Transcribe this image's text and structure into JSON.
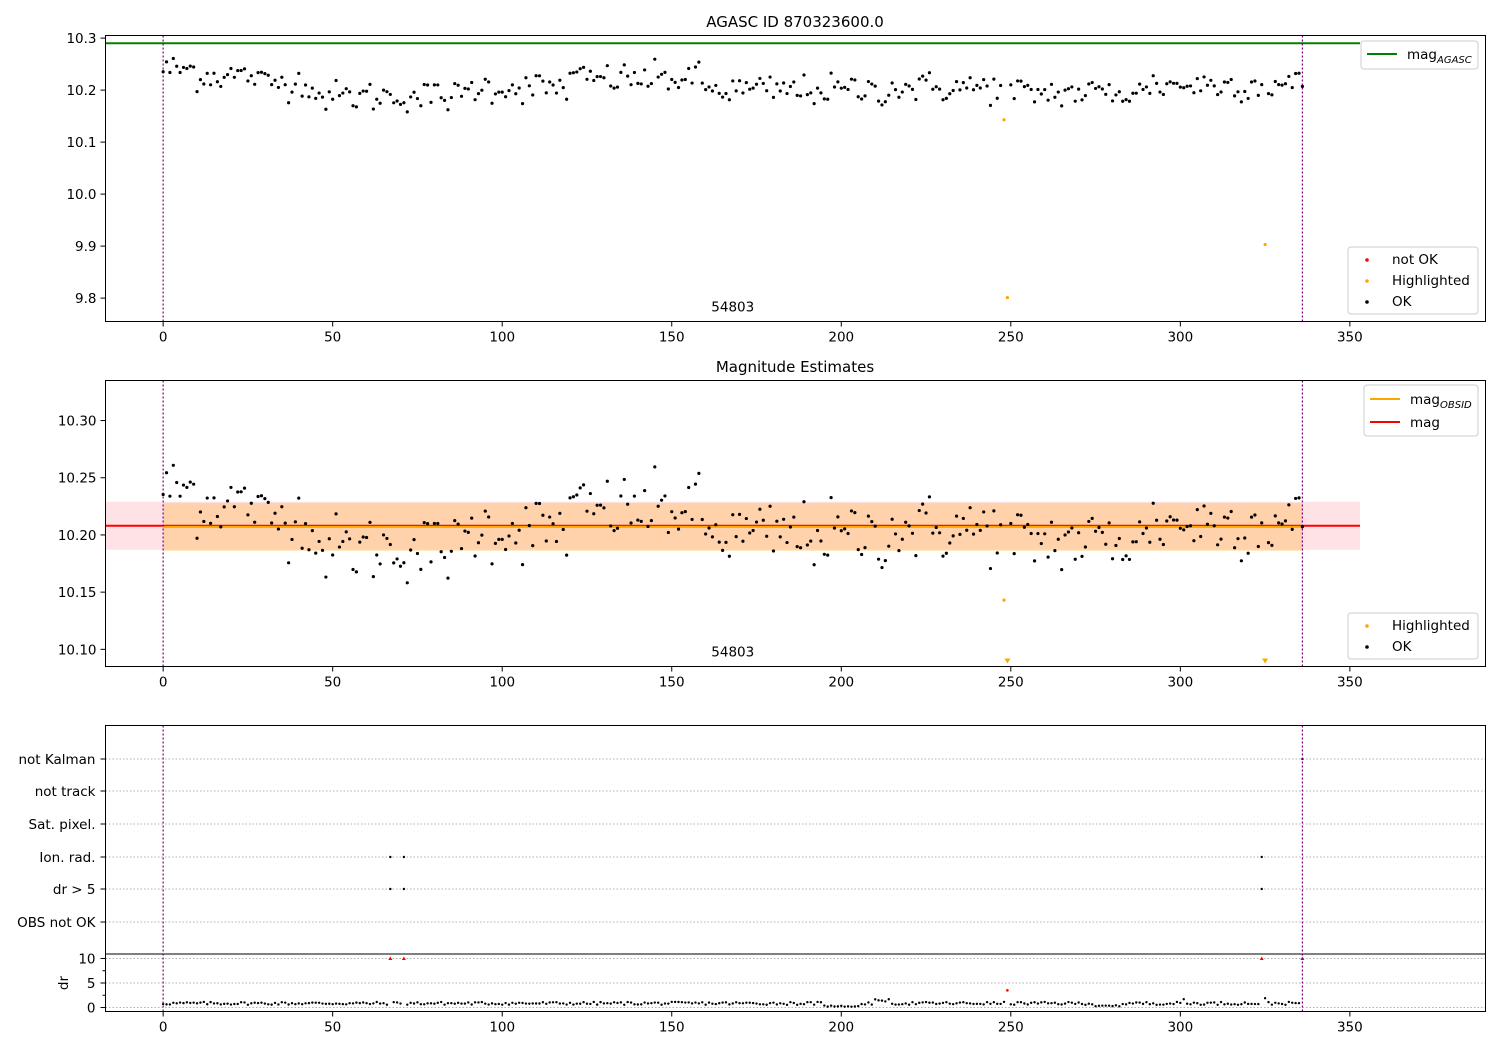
{
  "chart_data": [
    {
      "type": "scatter",
      "title": "AGASC ID 870323600.0",
      "xlim": [
        -17,
        390
      ],
      "ylim": [
        9.755,
        10.305
      ],
      "xticks": [
        0,
        50,
        100,
        150,
        200,
        250,
        300,
        350
      ],
      "yticks": [
        9.8,
        9.9,
        10.0,
        10.1,
        10.2,
        10.3
      ],
      "ytick_labels": [
        "9.8",
        "9.9",
        "10.0",
        "10.1",
        "10.2",
        "10.3"
      ],
      "vlines": [
        0,
        336
      ],
      "obsid_label": {
        "text": "54803",
        "x": 168
      },
      "mag_agasc": {
        "value": 10.29,
        "color": "#008000",
        "x_range": [
          -17,
          353
        ]
      },
      "ok_color": "#000000",
      "highlight_color": "#ffa500",
      "notok_color": "#ff0000",
      "highlighted": [
        {
          "x": 248,
          "y": 10.143
        },
        {
          "x": 249,
          "y": 9.801
        },
        {
          "x": 325,
          "y": 9.903
        }
      ],
      "legend_top": [
        {
          "label": "mag",
          "sub": "AGASC",
          "color": "#008000"
        }
      ],
      "legend_bottom": [
        {
          "label": "not OK",
          "color": "#ff0000"
        },
        {
          "label": "Highlighted",
          "color": "#ffa500"
        },
        {
          "label": "OK",
          "color": "#000000"
        }
      ]
    },
    {
      "type": "scatter",
      "title": "Magnitude Estimates",
      "xlim": [
        -17,
        390
      ],
      "ylim": [
        10.085,
        10.335
      ],
      "xticks": [
        0,
        50,
        100,
        150,
        200,
        250,
        300,
        350
      ],
      "yticks": [
        10.1,
        10.15,
        10.2,
        10.25,
        10.3
      ],
      "ytick_labels": [
        "10.10",
        "10.15",
        "10.20",
        "10.25",
        "10.30"
      ],
      "vlines": [
        0,
        336
      ],
      "obsid_label": {
        "text": "54803",
        "x": 168
      },
      "mag": {
        "value": 10.208,
        "err": 0.021,
        "color": "#ff0000",
        "x_range": [
          -17,
          353
        ]
      },
      "mag_obsid": {
        "value": 10.207,
        "err": 0.021,
        "color": "#ffa500",
        "x_range": [
          0,
          336
        ]
      },
      "highlighted": [
        {
          "x": 248,
          "y": 10.143
        }
      ],
      "below_markers": [
        249,
        325
      ],
      "legend_top": [
        {
          "label": "mag",
          "sub": "OBSID",
          "color": "#ffa500"
        },
        {
          "label": "mag",
          "sub": "",
          "color": "#ff0000"
        }
      ],
      "legend_bottom": [
        {
          "label": "Highlighted",
          "color": "#ffa500"
        },
        {
          "label": "OK",
          "color": "#000000"
        }
      ]
    },
    {
      "type": "scatter",
      "title": "",
      "xlim": [
        -17,
        390
      ],
      "xticks": [
        0,
        50,
        100,
        150,
        200,
        250,
        300,
        350
      ],
      "vlines": [
        0,
        336
      ],
      "flag_rows": [
        "not Kalman",
        "not track",
        "Sat. pixel.",
        "Ion. rad.",
        "dr > 5",
        "OBS not OK"
      ],
      "flags": {
        "Ion. rad.": [
          67,
          71,
          324
        ],
        "dr > 5": [
          67,
          71,
          324
        ],
        "not Kalman": [
          336
        ]
      },
      "dr_ylabel": "dr",
      "dr_ylim": [
        -0.3,
        10.3
      ],
      "dr_yticks": [
        0,
        5,
        10
      ],
      "dr_ytick_labels": [
        "0",
        "5",
        "10"
      ],
      "dr_minor_ticks": [
        2.5,
        7.5
      ],
      "dr_capped": [
        {
          "x": 67,
          "y": 10
        },
        {
          "x": 71,
          "y": 10
        },
        {
          "x": 324,
          "y": 10
        },
        {
          "x": 336,
          "y": 10
        }
      ],
      "dr_red_points": [
        {
          "x": 249,
          "y": 3.5
        }
      ]
    }
  ]
}
